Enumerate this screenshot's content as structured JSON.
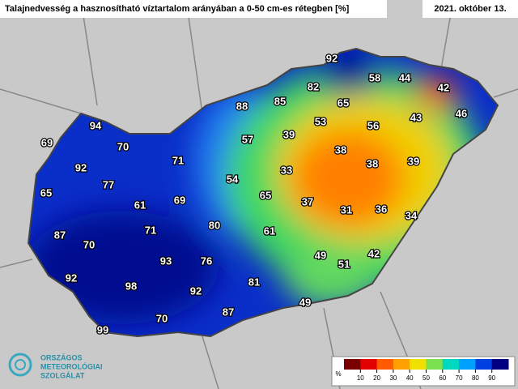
{
  "map": {
    "title": "Talajnedvesség a hasznosítható víztartalom arányában a 0-50 cm-es rétegben [%]",
    "date": "2021. október 13.",
    "stations": [
      92,
      58,
      44,
      42,
      82,
      85,
      65,
      88,
      94,
      53,
      56,
      43,
      46,
      69,
      70,
      39,
      38,
      57,
      71,
      92,
      33,
      38,
      39,
      77,
      54,
      65,
      69,
      61,
      65,
      37,
      31,
      36,
      34,
      80,
      71,
      61,
      87,
      70,
      49,
      42,
      93,
      76,
      51,
      92,
      81,
      98,
      92,
      49,
      87,
      70,
      99
    ]
  },
  "legend": {
    "unit": "%",
    "ticks": [
      10,
      20,
      30,
      40,
      50,
      60,
      70,
      80,
      90
    ],
    "colors": [
      "#7a0000",
      "#e00000",
      "#ff5a00",
      "#ffa000",
      "#f0e000",
      "#7ae050",
      "#00d8c0",
      "#00a0ff",
      "#0040e0",
      "#000080"
    ]
  },
  "logo": {
    "lines": [
      "ORSZÁGOS",
      "METEOROLÓGIAI",
      "SZOLGÁLAT"
    ]
  }
}
